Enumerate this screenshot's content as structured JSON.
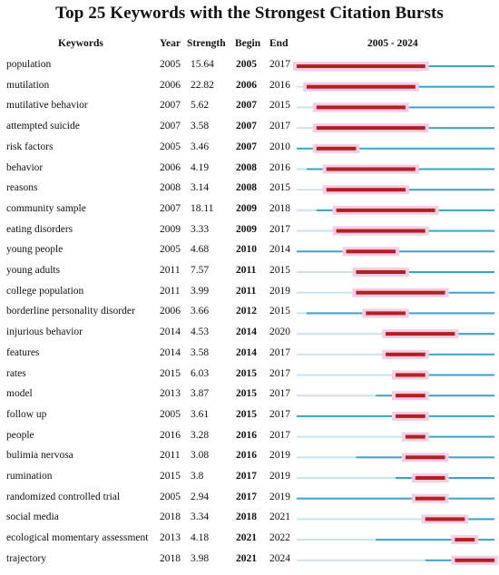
{
  "chart_data": {
    "type": "table",
    "title": "Top 25 Keywords with the Strongest Citation Bursts",
    "columns": [
      "Keywords",
      "Year",
      "Strength",
      "Begin",
      "End",
      "2005 - 2024"
    ],
    "range": [
      2005,
      2024
    ],
    "colors": {
      "burst": "#b22020",
      "active": "#3aa3c7",
      "inactive": "#c8e4ef",
      "highlight": "#f6cde6"
    },
    "rows": [
      {
        "keyword": "population",
        "year": "2005",
        "strength": "15.64",
        "begin": "2005",
        "end": "2017"
      },
      {
        "keyword": "mutilation",
        "year": "2006",
        "strength": "22.82",
        "begin": "2006",
        "end": "2016"
      },
      {
        "keyword": "mutilative behavior",
        "year": "2007",
        "strength": "5.62",
        "begin": "2007",
        "end": "2015"
      },
      {
        "keyword": "attempted suicide",
        "year": "2007",
        "strength": "3.58",
        "begin": "2007",
        "end": "2017"
      },
      {
        "keyword": "risk factors",
        "year": "2005",
        "strength": "3.46",
        "begin": "2007",
        "end": "2010"
      },
      {
        "keyword": "behavior",
        "year": "2006",
        "strength": "4.19",
        "begin": "2008",
        "end": "2016"
      },
      {
        "keyword": "reasons",
        "year": "2008",
        "strength": "3.14",
        "begin": "2008",
        "end": "2015"
      },
      {
        "keyword": "community sample",
        "year": "2007",
        "strength": "18.11",
        "begin": "2009",
        "end": "2018"
      },
      {
        "keyword": "eating disorders",
        "year": "2009",
        "strength": "3.33",
        "begin": "2009",
        "end": "2017"
      },
      {
        "keyword": "young people",
        "year": "2005",
        "strength": "4.68",
        "begin": "2010",
        "end": "2014"
      },
      {
        "keyword": "young adults",
        "year": "2011",
        "strength": "7.57",
        "begin": "2011",
        "end": "2015"
      },
      {
        "keyword": "college population",
        "year": "2011",
        "strength": "3.99",
        "begin": "2011",
        "end": "2019"
      },
      {
        "keyword": "borderline personality disorder",
        "year": "2006",
        "strength": "3.66",
        "begin": "2012",
        "end": "2015"
      },
      {
        "keyword": "injurious behavior",
        "year": "2014",
        "strength": "4.53",
        "begin": "2014",
        "end": "2020"
      },
      {
        "keyword": "features",
        "year": "2014",
        "strength": "3.58",
        "begin": "2014",
        "end": "2017"
      },
      {
        "keyword": "rates",
        "year": "2015",
        "strength": "6.03",
        "begin": "2015",
        "end": "2017"
      },
      {
        "keyword": "model",
        "year": "2013",
        "strength": "3.87",
        "begin": "2015",
        "end": "2017"
      },
      {
        "keyword": "follow up",
        "year": "2005",
        "strength": "3.61",
        "begin": "2015",
        "end": "2017"
      },
      {
        "keyword": "people",
        "year": "2016",
        "strength": "3.28",
        "begin": "2016",
        "end": "2017"
      },
      {
        "keyword": "bulimia nervosa",
        "year": "2011",
        "strength": "3.08",
        "begin": "2016",
        "end": "2019"
      },
      {
        "keyword": "rumination",
        "year": "2015",
        "strength": "3.8",
        "begin": "2017",
        "end": "2019"
      },
      {
        "keyword": "randomized controlled trial",
        "year": "2005",
        "strength": "2.94",
        "begin": "2017",
        "end": "2019"
      },
      {
        "keyword": "social media",
        "year": "2018",
        "strength": "3.34",
        "begin": "2018",
        "end": "2021"
      },
      {
        "keyword": "ecological momentary assessment",
        "year": "2013",
        "strength": "4.18",
        "begin": "2021",
        "end": "2022"
      },
      {
        "keyword": "trajectory",
        "year": "2018",
        "strength": "3.98",
        "begin": "2021",
        "end": "2024"
      }
    ]
  }
}
